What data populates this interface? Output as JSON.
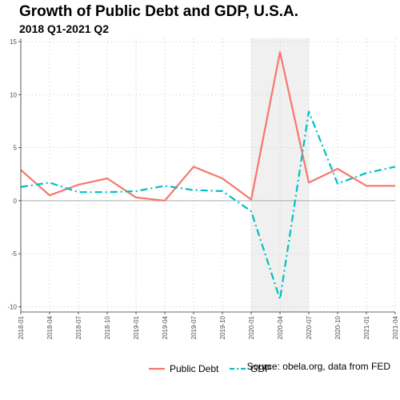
{
  "chart_data": {
    "type": "line",
    "title": "Growth of Public Debt and GDP, U.S.A.",
    "subtitle": "2018 Q1-2021 Q2",
    "caption": "Source: obela.org, data from FED",
    "categories": [
      "2018-01",
      "2018-04",
      "2018-07",
      "2018-10",
      "2019-01",
      "2019-04",
      "2019-07",
      "2019-10",
      "2020-01",
      "2020-04",
      "2020-07",
      "2020-10",
      "2021-01",
      "2021-04"
    ],
    "series": [
      {
        "name": "Public Debt",
        "color": "#f8766d",
        "dash": "solid",
        "values": [
          2.9,
          0.5,
          1.5,
          2.1,
          0.3,
          0.0,
          3.2,
          2.1,
          0.1,
          14.0,
          1.7,
          3.0,
          1.4,
          1.4
        ]
      },
      {
        "name": "GDP",
        "color": "#00bfc4",
        "dash": "dashdot",
        "values": [
          1.3,
          1.7,
          0.8,
          0.8,
          0.9,
          1.4,
          1.0,
          0.9,
          -1.0,
          -9.3,
          8.4,
          1.6,
          2.6,
          3.2
        ]
      }
    ],
    "ylim": [
      -10.5,
      15.3
    ],
    "yticks": [
      -10,
      -5,
      0,
      5,
      10,
      15
    ],
    "shaded_region": {
      "from": "2020-01",
      "to": "2020-07"
    },
    "grid": true,
    "legend_position": "bottom"
  }
}
